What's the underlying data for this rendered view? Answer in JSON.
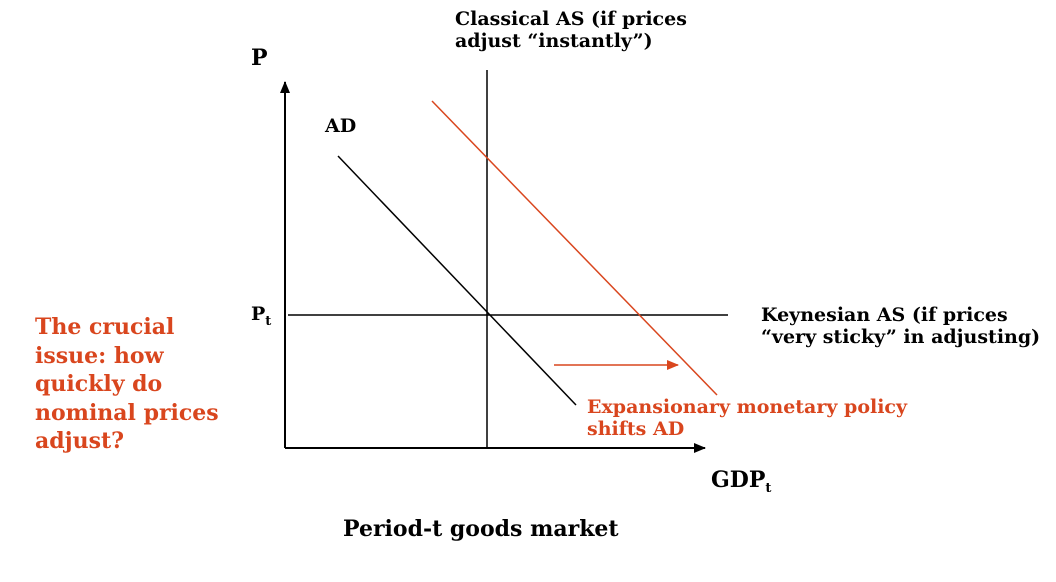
{
  "colors": {
    "axis": "#000000",
    "curve": "#000000",
    "shifted_curve": "#D9461E",
    "accent_text": "#D9461E"
  },
  "axes": {
    "y_label": "P",
    "x_label_main": "GDP",
    "x_label_sub": "t",
    "price_level_main": "P",
    "price_level_sub": "t"
  },
  "curves": {
    "ad_label": "AD",
    "classical_as_line1": "Classical AS (if prices",
    "classical_as_line2": "adjust “instantly”)",
    "keynesian_as_line1": "Keynesian AS (if prices",
    "keynesian_as_line2": "“very sticky” in adjusting)"
  },
  "annotations": {
    "shift_line1": "Expansionary monetary policy",
    "shift_line2": "shifts AD",
    "side_note": "The crucial issue:  how quickly do nominal prices adjust?"
  },
  "caption": "Period-t goods market"
}
